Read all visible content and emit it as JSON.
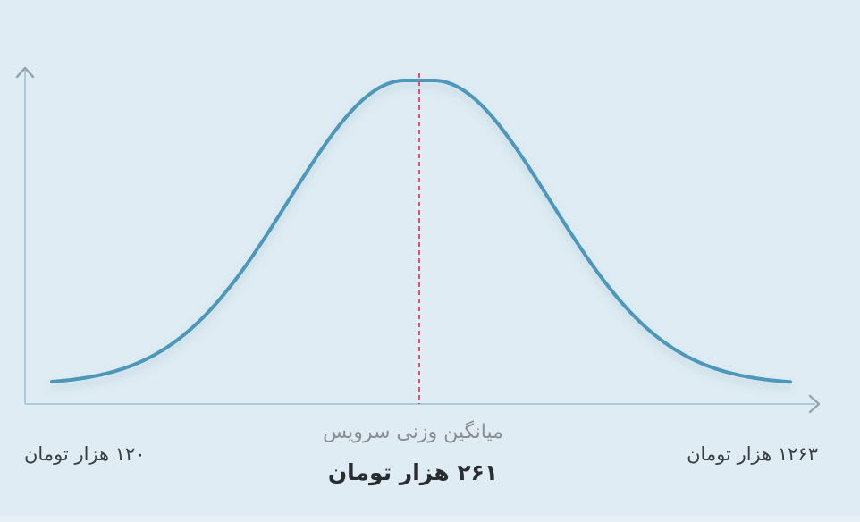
{
  "chart_data": {
    "type": "area",
    "title": "",
    "curve": "normal-distribution",
    "x_min_label": "۱۲۰ هزار تومان",
    "x_max_label": "۱۲۶۳ هزار تومان",
    "mean_caption": "میانگین وزنی سرویس",
    "mean_label": "۲۶۱ هزار تومان",
    "colors": {
      "curve": "#4e97bb",
      "mean_line": "#e0506f",
      "axis": "#a9cbdc",
      "arrow": "#9aa4ab"
    }
  }
}
